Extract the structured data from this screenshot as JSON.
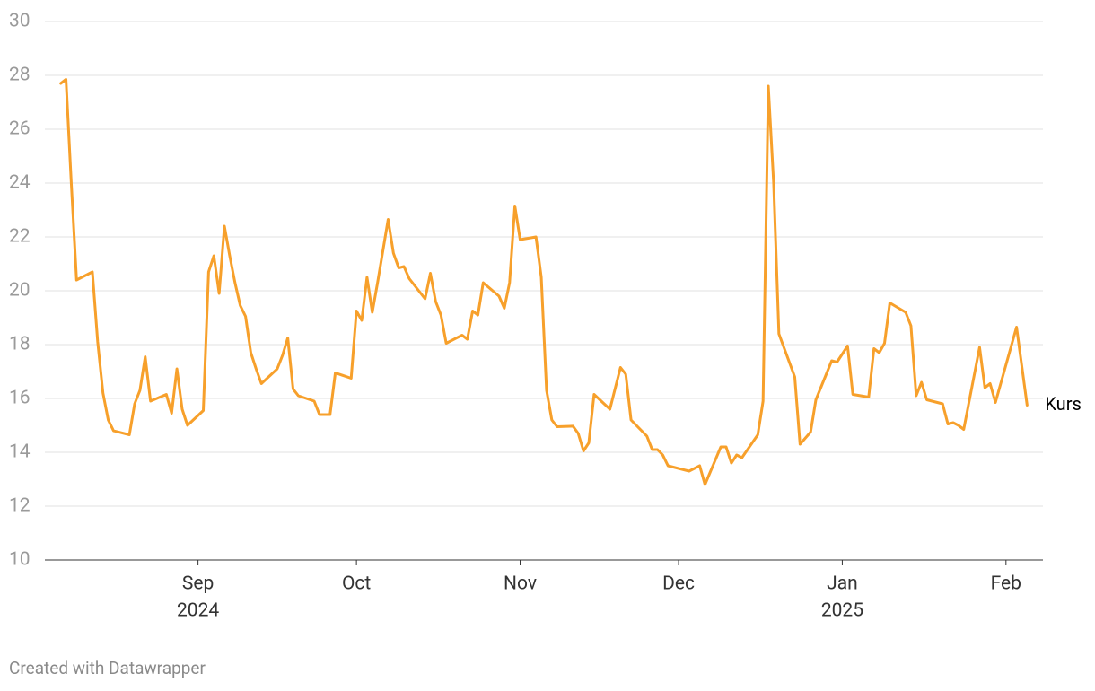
{
  "chart_data": {
    "type": "line",
    "footer": "Created with Datawrapper",
    "x": [
      "2024-08-06",
      "2024-08-07",
      "2024-08-08",
      "2024-08-09",
      "2024-08-12",
      "2024-08-13",
      "2024-08-14",
      "2024-08-15",
      "2024-08-16",
      "2024-08-19",
      "2024-08-20",
      "2024-08-21",
      "2024-08-22",
      "2024-08-23",
      "2024-08-26",
      "2024-08-27",
      "2024-08-28",
      "2024-08-29",
      "2024-08-30",
      "2024-09-02",
      "2024-09-03",
      "2024-09-04",
      "2024-09-05",
      "2024-09-06",
      "2024-09-07",
      "2024-09-08",
      "2024-09-09",
      "2024-09-10",
      "2024-09-11",
      "2024-09-12",
      "2024-09-13",
      "2024-09-16",
      "2024-09-17",
      "2024-09-18",
      "2024-09-19",
      "2024-09-20",
      "2024-09-23",
      "2024-09-24",
      "2024-09-26",
      "2024-09-27",
      "2024-09-30",
      "2024-10-01",
      "2024-10-02",
      "2024-10-03",
      "2024-10-04",
      "2024-10-05",
      "2024-10-07",
      "2024-10-08",
      "2024-10-09",
      "2024-10-10",
      "2024-10-11",
      "2024-10-14",
      "2024-10-15",
      "2024-10-16",
      "2024-10-17",
      "2024-10-18",
      "2024-10-21",
      "2024-10-22",
      "2024-10-23",
      "2024-10-24",
      "2024-10-25",
      "2024-10-28",
      "2024-10-29",
      "2024-10-30",
      "2024-10-31",
      "2024-11-01",
      "2024-11-04",
      "2024-11-05",
      "2024-11-06",
      "2024-11-07",
      "2024-11-08",
      "2024-11-11",
      "2024-11-12",
      "2024-11-13",
      "2024-11-14",
      "2024-11-15",
      "2024-11-18",
      "2024-11-20",
      "2024-11-21",
      "2024-11-22",
      "2024-11-25",
      "2024-11-26",
      "2024-11-27",
      "2024-11-28",
      "2024-11-29",
      "2024-12-03",
      "2024-12-05",
      "2024-12-06",
      "2024-12-09",
      "2024-12-10",
      "2024-12-11",
      "2024-12-12",
      "2024-12-13",
      "2024-12-16",
      "2024-12-17",
      "2024-12-18",
      "2024-12-19",
      "2024-12-20",
      "2024-12-23",
      "2024-12-24",
      "2024-12-26",
      "2024-12-27",
      "2024-12-30",
      "2024-12-31",
      "2025-01-02",
      "2025-01-03",
      "2025-01-06",
      "2025-01-07",
      "2025-01-08",
      "2025-01-09",
      "2025-01-10",
      "2025-01-13",
      "2025-01-14",
      "2025-01-15",
      "2025-01-16",
      "2025-01-17",
      "2025-01-20",
      "2025-01-21",
      "2025-01-22",
      "2025-01-23",
      "2025-01-24",
      "2025-01-27",
      "2025-01-28",
      "2025-01-29",
      "2025-01-30",
      "2025-02-03",
      "2025-02-05"
    ],
    "series": [
      {
        "name": "Kurs",
        "color": "#f7a02b",
        "values": [
          27.7,
          27.85,
          24,
          20.4,
          20.7,
          18.1,
          16.2,
          15.2,
          14.8,
          14.65,
          15.8,
          16.3,
          17.55,
          15.9,
          16.15,
          15.45,
          17.1,
          15.6,
          15.0,
          15.55,
          20.7,
          21.3,
          19.9,
          22.4,
          21.3,
          20.3,
          19.45,
          19.05,
          17.7,
          17.1,
          16.55,
          17.1,
          17.6,
          18.25,
          16.35,
          16.1,
          15.9,
          15.4,
          15.4,
          16.95,
          16.75,
          19.25,
          18.9,
          20.5,
          19.2,
          20.3,
          22.65,
          21.4,
          20.85,
          20.9,
          20.45,
          19.7,
          20.65,
          19.6,
          19.1,
          18.05,
          18.35,
          18.2,
          19.25,
          19.1,
          20.3,
          19.8,
          19.35,
          20.3,
          23.15,
          21.9,
          22.0,
          20.5,
          16.3,
          15.2,
          14.95,
          14.97,
          14.7,
          14.05,
          14.35,
          16.15,
          15.6,
          17.15,
          16.9,
          15.2,
          14.6,
          14.1,
          14.1,
          13.9,
          13.5,
          13.3,
          13.5,
          12.8,
          14.2,
          14.2,
          13.6,
          13.9,
          13.8,
          14.65,
          15.9,
          27.6,
          24.0,
          18.4,
          16.8,
          14.3,
          14.75,
          15.95,
          17.4,
          17.35,
          17.95,
          16.15,
          16.05,
          17.85,
          17.7,
          18.05,
          19.55,
          19.2,
          18.7,
          16.1,
          16.6,
          15.95,
          15.8,
          15.05,
          15.1,
          15.0,
          14.85,
          17.9,
          16.4,
          16.55,
          15.85,
          18.65,
          15.75
        ]
      }
    ],
    "xlim": [
      "2024-08-03",
      "2025-02-08"
    ],
    "xticks": [
      {
        "value": "2024-09-01",
        "label": "Sep"
      },
      {
        "value": "2024-10-01",
        "label": "Oct"
      },
      {
        "value": "2024-11-01",
        "label": "Nov"
      },
      {
        "value": "2024-12-01",
        "label": "Dec"
      },
      {
        "value": "2025-01-01",
        "label": "Jan"
      },
      {
        "value": "2025-02-01",
        "label": "Feb"
      }
    ],
    "xtick_years": [
      {
        "value": "2024-09-01",
        "label": "2024"
      },
      {
        "value": "2025-01-01",
        "label": "2025"
      }
    ],
    "ylim": [
      10,
      30
    ],
    "yticks": [
      10,
      12,
      14,
      16,
      18,
      20,
      22,
      24,
      26,
      28,
      30
    ],
    "grid": true
  }
}
